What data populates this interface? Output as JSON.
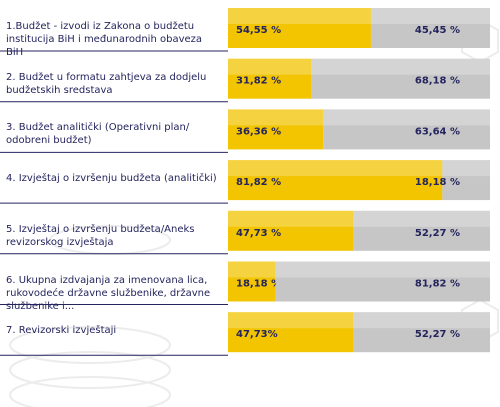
{
  "chart_data": {
    "type": "stacked-bar-horizontal",
    "categories": [
      "1.Budžet - izvodi iz Zakona o budžetu institucija BiH i međunarodnih obaveza BiH",
      "2. Budžet u formatu zahtjeva za dodjelu budžetskih sredstava",
      "3. Budžet analitički (Operativni plan/ odobreni budžet)",
      "4. Izvještaj o izvršenju budžeta (analitički)",
      "5. Izvještaj o izvršenju budžeta/Aneks revizorskog izvještaja",
      "6. Ukupna izdvajanja za imenovana lica, rukovodeće državne službenike, državne službenike i...",
      "7. Revizorski izvještaji"
    ],
    "series": [
      {
        "color": "#f2c500",
        "values": [
          54.55,
          31.82,
          36.36,
          81.82,
          47.73,
          18.18,
          47.73
        ],
        "value_labels": [
          "54,55 %",
          "31,82 %",
          "36,36 %",
          "81,82 %",
          "47,73 %",
          "18,18 %",
          "47,73%"
        ]
      },
      {
        "color": "#c6c6c6",
        "values": [
          45.45,
          68.18,
          63.64,
          18.18,
          52.27,
          81.82,
          52.27
        ],
        "value_labels": [
          "45,45 %",
          "68,18 %",
          "63,64 %",
          "18,18 %",
          "52,27 %",
          "81,82 %",
          "52,27 %"
        ]
      }
    ]
  }
}
